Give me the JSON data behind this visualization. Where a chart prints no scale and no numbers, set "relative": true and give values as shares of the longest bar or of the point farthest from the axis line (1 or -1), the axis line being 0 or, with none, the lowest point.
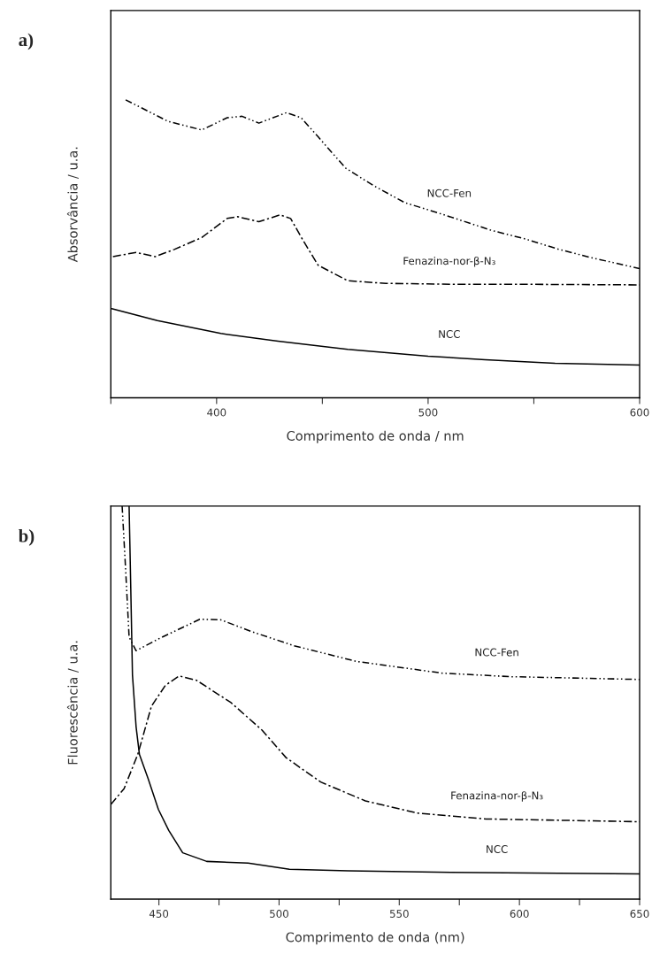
{
  "chart_data": [
    {
      "type": "line",
      "relative": true,
      "xlabel": "Comprimento de onda / nm",
      "ylabel": "Absorvância / u.a.",
      "annotations": [
        "a)"
      ],
      "xlim": [
        350,
        600
      ],
      "xticks": [
        {
          "value": 350,
          "label": null
        },
        400,
        {
          "value": 450,
          "label": null
        },
        500,
        {
          "value": 550,
          "label": null
        },
        600
      ],
      "grid": false,
      "legend": false,
      "series": [
        {
          "name": "NCC-Fen",
          "color": "#000000",
          "line_style": "dotted",
          "x": [
            357,
            369,
            377,
            393,
            405,
            412,
            420,
            433,
            440,
            448,
            461,
            474,
            489,
            505,
            515,
            530,
            546,
            562,
            578,
            600
          ],
          "values": [
            1,
            0.957,
            0.928,
            0.899,
            0.94,
            0.945,
            0.922,
            0.957,
            0.94,
            0.876,
            0.771,
            0.713,
            0.655,
            0.62,
            0.597,
            0.562,
            0.533,
            0.498,
            0.469,
            0.434
          ]
        },
        {
          "name": "Fenazina-nor-β-N₃",
          "color": "#000000",
          "line_style": "dashed",
          "x": [
            351,
            362,
            371,
            380,
            393,
            405,
            410,
            420,
            430,
            435,
            441,
            448,
            462,
            480,
            513,
            546,
            600
          ],
          "values": [
            0.474,
            0.488,
            0.474,
            0.498,
            0.538,
            0.602,
            0.608,
            0.591,
            0.614,
            0.602,
            0.527,
            0.445,
            0.393,
            0.384,
            0.381,
            0.381,
            0.379
          ]
        },
        {
          "name": "NCC",
          "color": "#000000",
          "line_style": "solid",
          "x": [
            350,
            372,
            402,
            429,
            462,
            500,
            527,
            560,
            600
          ],
          "values": [
            0.3,
            0.259,
            0.216,
            0.19,
            0.163,
            0.14,
            0.128,
            0.116,
            0.11
          ]
        }
      ]
    },
    {
      "type": "line",
      "relative": true,
      "xlabel": "Comprimento de onda (nm)",
      "ylabel": "Fluorescência / u.a.",
      "annotations": [
        "b)"
      ],
      "xlim": [
        430,
        650
      ],
      "xticks": [
        450,
        {
          "value": 475,
          "label": null
        },
        500,
        {
          "value": 525,
          "label": null
        },
        550,
        {
          "value": 575,
          "label": null
        },
        600,
        {
          "value": 625,
          "label": null
        },
        650
      ],
      "grid": false,
      "legend": false,
      "series": [
        {
          "name": "NCC-Fen",
          "color": "#000000",
          "line_style": "dotted",
          "x": [
            434.7,
            436.2,
            437.6,
            440.5,
            449.8,
            467,
            475.6,
            488.9,
            506.1,
            532,
            567.9,
            596.5,
            650
          ],
          "values": [
            1,
            0.833,
            0.667,
            0.632,
            0.662,
            0.712,
            0.711,
            0.68,
            0.645,
            0.605,
            0.575,
            0.566,
            0.559
          ]
        },
        {
          "name": "Fenazina-nor-β-N₃",
          "color": "#000000",
          "line_style": "dashed",
          "x": [
            430,
            435.5,
            441.2,
            446.9,
            452.7,
            458.4,
            465.6,
            480,
            492.9,
            502.9,
            517.3,
            535.9,
            557.4,
            586.1,
            650
          ],
          "values": [
            0.241,
            0.281,
            0.368,
            0.491,
            0.544,
            0.568,
            0.557,
            0.5,
            0.43,
            0.36,
            0.298,
            0.25,
            0.219,
            0.204,
            0.197
          ]
        },
        {
          "name": "NCC",
          "color": "#000000",
          "line_style": "solid",
          "x": [
            437.6,
            438.3,
            439,
            440.5,
            441.9,
            445.5,
            449.8,
            454.1,
            459.9,
            469.9,
            487.1,
            504.3,
            528.7,
            571.8,
            650
          ],
          "values": [
            1,
            0.789,
            0.57,
            0.439,
            0.368,
            0.307,
            0.228,
            0.175,
            0.118,
            0.096,
            0.092,
            0.076,
            0.072,
            0.068,
            0.064
          ]
        }
      ]
    }
  ]
}
